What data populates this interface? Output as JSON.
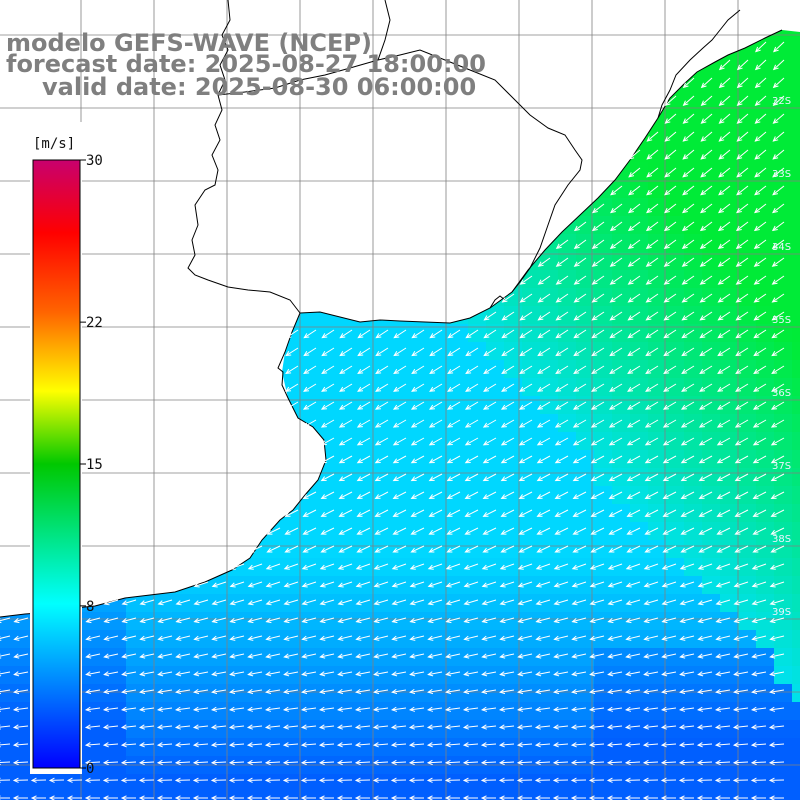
{
  "title": {
    "model": "modelo GEFS-WAVE (NCEP)",
    "forecast": "forecast date: 2025-08-27 18:00:00",
    "valid": "valid date: 2025-08-30 06:00:00"
  },
  "colorbar": {
    "unit": "[m/s]",
    "ticks": [
      "30",
      "22",
      "15",
      "8",
      "0"
    ],
    "tick_values": [
      30,
      22,
      15,
      8,
      0
    ],
    "range": [
      0,
      30
    ]
  },
  "lat_labels": [
    "32S",
    "33S",
    "34S",
    "35S",
    "36S",
    "37S",
    "38S",
    "39S"
  ],
  "colors": {
    "land": "#ffffff",
    "grid": "#808080",
    "coast": "#000000",
    "arrows": "#ffffff",
    "speed_low": "#0040ff",
    "speed_mid": "#00e0ff",
    "speed_high": "#00ee40"
  }
}
